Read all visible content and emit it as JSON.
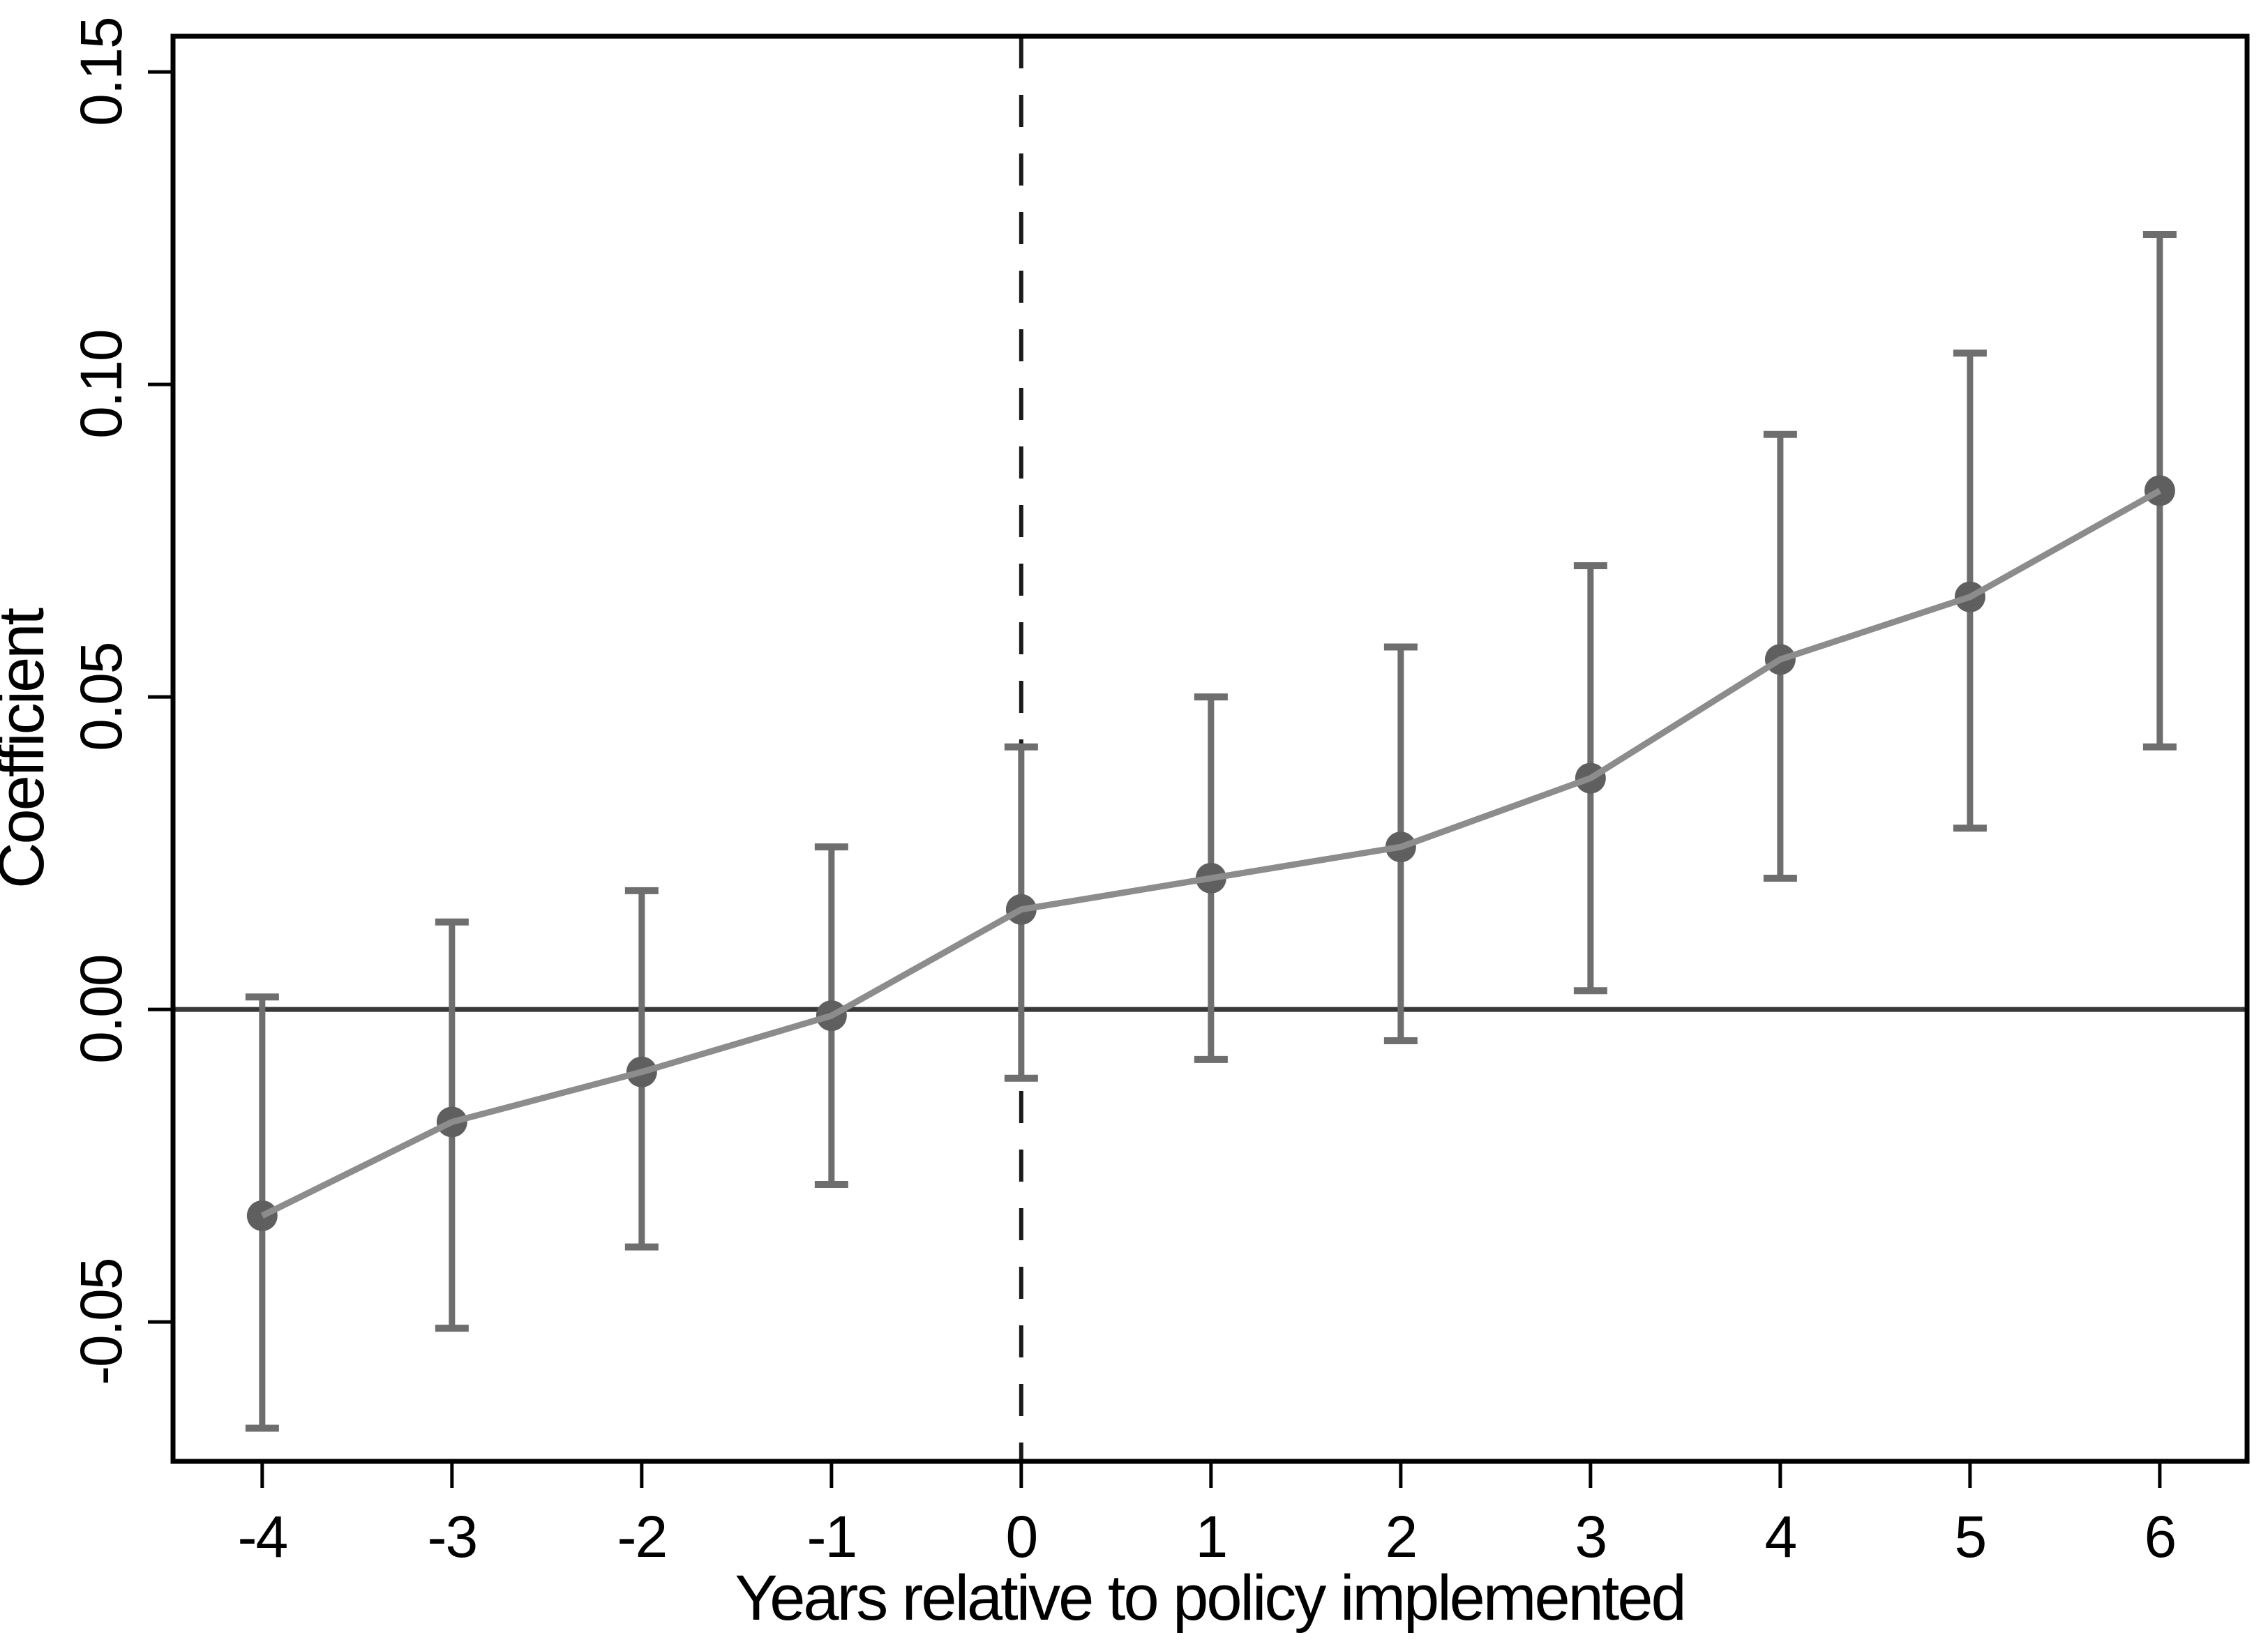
{
  "figure": {
    "description": "Event-study coefficient plot with 95% confidence interval error bars"
  },
  "chart_data": {
    "type": "line",
    "title": "",
    "xlabel": "Years relative to policy implemented",
    "ylabel": "Coefficient",
    "x": [
      -4,
      -3,
      -2,
      -1,
      0,
      1,
      2,
      3,
      4,
      5,
      6
    ],
    "x_tick_labels": [
      "-4",
      "-3",
      "-2",
      "-1",
      "0",
      "1",
      "2",
      "3",
      "4",
      "5",
      "6"
    ],
    "series": [
      {
        "name": "Coefficient",
        "values": [
          -0.033,
          -0.018,
          -0.01,
          -0.001,
          0.016,
          0.021,
          0.026,
          0.037,
          0.056,
          0.066,
          0.083
        ]
      }
    ],
    "ci_low": [
      -0.067,
      -0.051,
      -0.038,
      -0.028,
      -0.011,
      -0.008,
      -0.005,
      0.003,
      0.021,
      0.029,
      0.042
    ],
    "ci_high": [
      0.002,
      0.014,
      0.019,
      0.026,
      0.042,
      0.05,
      0.058,
      0.071,
      0.092,
      0.105,
      0.124
    ],
    "y_ticks": [
      -0.05,
      0.0,
      0.05,
      0.1,
      0.15
    ],
    "y_tick_labels": [
      "-0.05",
      "0.00",
      "0.05",
      "0.10",
      "0.15"
    ],
    "xlim": [
      -4.47,
      6.46
    ],
    "ylim": [
      -0.0723,
      0.1557
    ],
    "reference_lines": {
      "horizontal_solid_at": 0,
      "vertical_dashed_at": 0
    },
    "grid": false,
    "legend": "none",
    "colors": {
      "background": "#ffffff",
      "frame": "#000000",
      "zero_line": "#383838",
      "dashed_line": "#1a1a1a",
      "series_line": "#8c8c8c",
      "marker": "#5f5f5f",
      "error_bar": "#6e6e6e",
      "text": "#000000"
    }
  }
}
